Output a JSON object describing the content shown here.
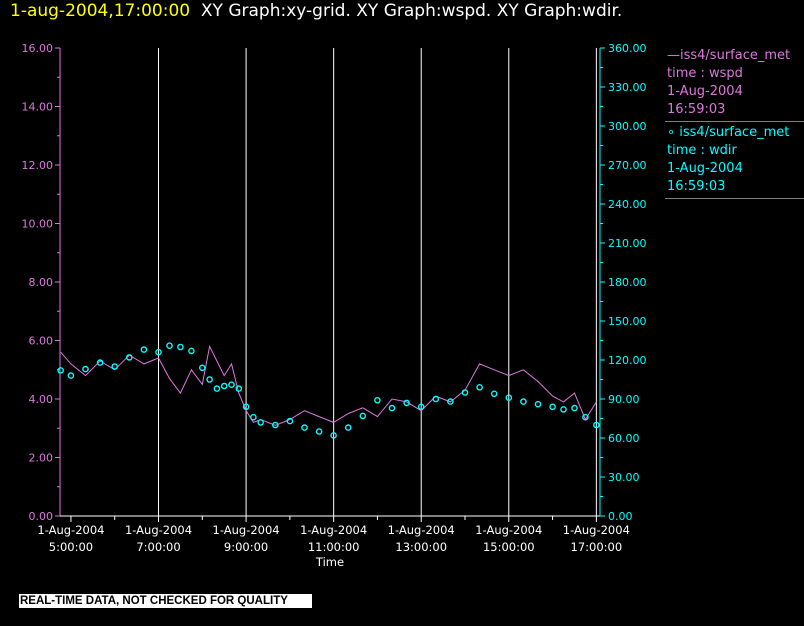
{
  "header": {
    "timestamp": "1-aug-2004,17:00:00",
    "graphs": "XY Graph:xy-grid.  XY Graph:wspd.  XY Graph:wdir."
  },
  "legend": [
    {
      "series_line": "—iss4/surface_met",
      "variable": "time : wspd",
      "date": "1-Aug-2004",
      "time": "16:59:03"
    },
    {
      "series_line": "∘ iss4/surface_met",
      "variable": "time : wdir",
      "date": "1-Aug-2004",
      "time": "16:59:03"
    }
  ],
  "disclaimer": "REAL-TIME DATA, NOT CHECKED FOR QUALITY",
  "colors": {
    "wspd": "#dd77dd",
    "wdir": "#00ffff",
    "grid": "#ffffff",
    "background": "#000000",
    "timestamp": "#ffff00"
  },
  "chart_data": {
    "type": "line",
    "xlabel": "Time",
    "x_range": [
      "1-Aug-2004 04:45:00",
      "1-Aug-2004 17:05:00"
    ],
    "x_ticks": [
      {
        "date": "1-Aug-2004",
        "time": "5:00:00",
        "hour": 5
      },
      {
        "date": "1-Aug-2004",
        "time": "7:00:00",
        "hour": 7
      },
      {
        "date": "1-Aug-2004",
        "time": "9:00:00",
        "hour": 9
      },
      {
        "date": "1-Aug-2004",
        "time": "11:00:00",
        "hour": 11
      },
      {
        "date": "1-Aug-2004",
        "time": "13:00:00",
        "hour": 13
      },
      {
        "date": "1-Aug-2004",
        "time": "15:00:00",
        "hour": 15
      },
      {
        "date": "1-Aug-2004",
        "time": "17:00:00",
        "hour": 17
      }
    ],
    "y_left": {
      "variable": "wspd",
      "ylim": [
        0,
        16
      ],
      "ticks": [
        "0.00",
        "2.00",
        "4.00",
        "6.00",
        "8.00",
        "10.00",
        "12.00",
        "14.00",
        "16.00"
      ]
    },
    "y_right": {
      "variable": "wdir",
      "ylim": [
        0,
        360
      ],
      "ticks": [
        "0.00",
        "30.00",
        "60.00",
        "90.00",
        "120.00",
        "150.00",
        "180.00",
        "210.00",
        "240.00",
        "270.00",
        "300.00",
        "330.00",
        "360.00"
      ]
    },
    "grid": "vertical lines at major time ticks",
    "series": [
      {
        "name": "iss4/surface_met",
        "variable": "wspd",
        "axis": "left",
        "style": "line",
        "x": [
          "04:46",
          "05:00",
          "05:20",
          "05:40",
          "06:00",
          "06:20",
          "06:40",
          "07:00",
          "07:15",
          "07:30",
          "07:45",
          "08:00",
          "08:10",
          "08:20",
          "08:30",
          "08:40",
          "08:50",
          "09:00",
          "09:10",
          "09:20",
          "09:40",
          "10:00",
          "10:20",
          "10:40",
          "11:00",
          "11:20",
          "11:40",
          "12:00",
          "12:20",
          "12:40",
          "13:00",
          "13:20",
          "13:40",
          "14:00",
          "14:20",
          "14:40",
          "15:00",
          "15:20",
          "15:40",
          "16:00",
          "16:15",
          "16:30",
          "16:45",
          "17:00"
        ],
        "values": [
          5.6,
          5.2,
          4.8,
          5.3,
          5.0,
          5.5,
          5.2,
          5.4,
          4.7,
          4.2,
          5.0,
          4.5,
          5.8,
          5.3,
          4.8,
          5.2,
          4.2,
          3.6,
          3.2,
          3.3,
          3.1,
          3.3,
          3.6,
          3.4,
          3.2,
          3.5,
          3.7,
          3.4,
          4.0,
          3.9,
          3.6,
          4.1,
          3.9,
          4.3,
          5.2,
          5.0,
          4.8,
          5.0,
          4.6,
          4.1,
          3.9,
          4.2,
          3.3,
          3.9
        ]
      },
      {
        "name": "iss4/surface_met",
        "variable": "wdir",
        "axis": "right",
        "style": "circles",
        "x": [
          "04:46",
          "05:00",
          "05:20",
          "05:40",
          "06:00",
          "06:20",
          "06:40",
          "07:00",
          "07:15",
          "07:30",
          "07:45",
          "08:00",
          "08:10",
          "08:20",
          "08:30",
          "08:40",
          "08:50",
          "09:00",
          "09:10",
          "09:20",
          "09:40",
          "10:00",
          "10:20",
          "10:40",
          "11:00",
          "11:20",
          "11:40",
          "12:00",
          "12:20",
          "12:40",
          "13:00",
          "13:20",
          "13:40",
          "14:00",
          "14:20",
          "14:40",
          "15:00",
          "15:20",
          "15:40",
          "16:00",
          "16:15",
          "16:30",
          "16:45",
          "17:00"
        ],
        "values": [
          112,
          108,
          113,
          118,
          115,
          122,
          128,
          126,
          131,
          130,
          127,
          114,
          105,
          98,
          100,
          101,
          98,
          84,
          76,
          72,
          70,
          73,
          68,
          65,
          62,
          68,
          77,
          89,
          83,
          87,
          84,
          90,
          88,
          95,
          99,
          94,
          91,
          88,
          86,
          84,
          82,
          83,
          76,
          70
        ]
      }
    ]
  }
}
